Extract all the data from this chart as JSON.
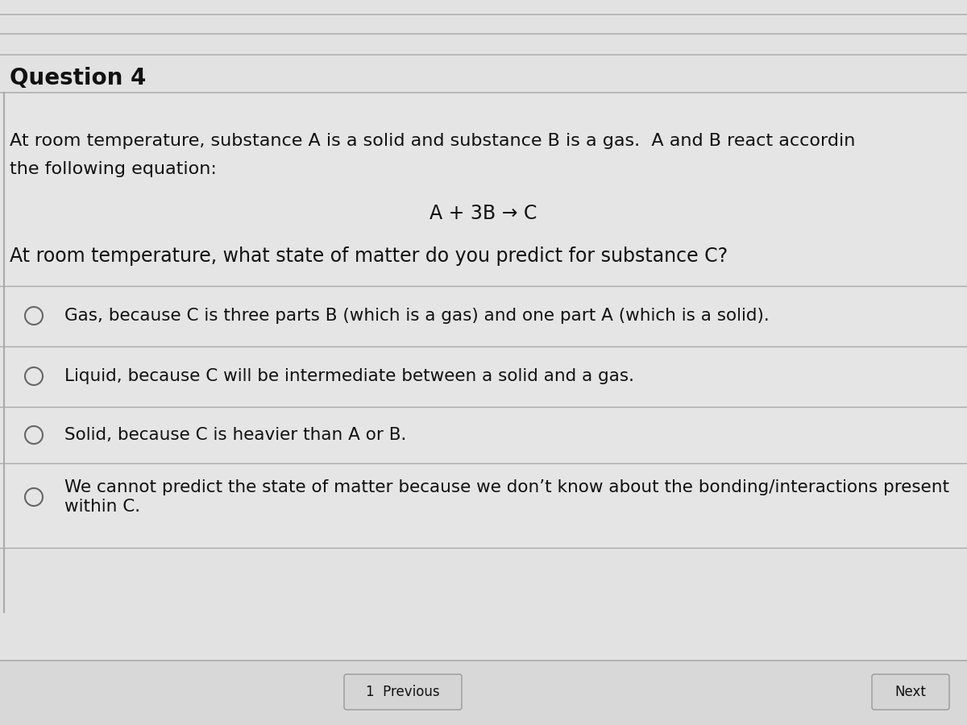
{
  "bg_color": "#c8c8c8",
  "panel_color": "#e2e2e2",
  "panel_light": "#eaeaea",
  "title": "Question 4",
  "title_fontsize": 20,
  "title_fontweight": "bold",
  "intro_line1": "At room temperature, substance A is a solid and substance B is a gas.  A and B react accordin",
  "intro_line2": "the following equation:",
  "equation": "A + 3B → C",
  "question": "At room temperature, what state of matter do you predict for substance C?",
  "options": [
    "Gas, because C is three parts B (which is a gas) and one part A (which is a solid).",
    "Liquid, because C will be intermediate between a solid and a gas.",
    "Solid, because C is heavier than A or B.",
    "We cannot predict the state of matter because we don’t know about the bonding/interactions present\nwithin C."
  ],
  "text_color": "#111111",
  "line_color": "#aaaaaa",
  "circle_edge_color": "#666666",
  "font_family": "DejaVu Sans",
  "body_fontsize": 16,
  "equation_fontsize": 17,
  "question_fontsize": 17,
  "option_fontsize": 15.5,
  "fig_width": 12.0,
  "fig_height": 9.0,
  "dpi": 100
}
